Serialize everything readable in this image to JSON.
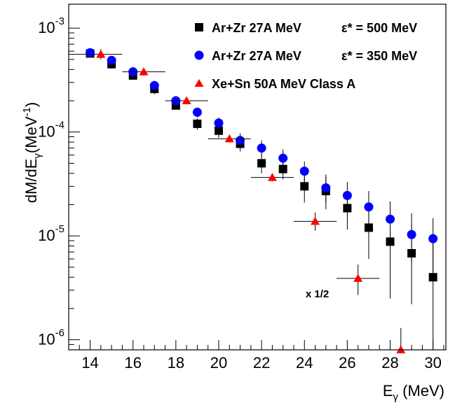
{
  "chart_data": {
    "type": "scatter",
    "xlabel": "E",
    "xlabel_sub": "γ",
    "xlabel_unit": " (MeV)",
    "ylabel": "dM/dE",
    "ylabel_sub": "γ",
    "ylabel_unit": "(MeV",
    "ylabel_unit_exp": "-1",
    "ylabel_close": ")",
    "xlim": [
      13.0,
      30.6
    ],
    "ylim": [
      8e-07,
      0.0017
    ],
    "yscale": "log",
    "x_ticks": [
      {
        "value": 14,
        "label": "14"
      },
      {
        "value": 16,
        "label": "16"
      },
      {
        "value": 18,
        "label": "18"
      },
      {
        "value": 20,
        "label": "20"
      },
      {
        "value": 22,
        "label": "22"
      },
      {
        "value": 24,
        "label": "24"
      },
      {
        "value": 26,
        "label": "26"
      },
      {
        "value": 28,
        "label": "28"
      },
      {
        "value": 30,
        "label": "30"
      }
    ],
    "y_ticks": [
      {
        "value": 1e-06,
        "base": "10",
        "exp": "-6"
      },
      {
        "value": 1e-05,
        "base": "10",
        "exp": "-5"
      },
      {
        "value": 0.0001,
        "base": "10",
        "exp": "-4"
      },
      {
        "value": 0.001,
        "base": "10",
        "exp": "-3"
      }
    ],
    "annotation": {
      "text": "x 1/2",
      "x": 24.6,
      "y": 2.8e-06
    },
    "series": [
      {
        "name": "Ar+Zr 27A MeV",
        "extra_label": "ε* = 500 MeV",
        "marker": "square",
        "color": "#000000",
        "points": [
          {
            "x": 14,
            "y": 0.00057,
            "ylo": 0.00052,
            "yhi": 0.00062
          },
          {
            "x": 15,
            "y": 0.00045,
            "ylo": 0.00041,
            "yhi": 0.0005
          },
          {
            "x": 16,
            "y": 0.00035,
            "ylo": 0.00032,
            "yhi": 0.00039
          },
          {
            "x": 17,
            "y": 0.00026,
            "ylo": 0.00023,
            "yhi": 0.00029
          },
          {
            "x": 18,
            "y": 0.00018,
            "ylo": 0.000165,
            "yhi": 0.0002
          },
          {
            "x": 19,
            "y": 0.00012,
            "ylo": 0.000105,
            "yhi": 0.000135
          },
          {
            "x": 20,
            "y": 0.000103,
            "ylo": 8.8e-05,
            "yhi": 0.000118
          },
          {
            "x": 21,
            "y": 7.7e-05,
            "ylo": 6.5e-05,
            "yhi": 9e-05
          },
          {
            "x": 22,
            "y": 5e-05,
            "ylo": 4e-05,
            "yhi": 6.2e-05
          },
          {
            "x": 23,
            "y": 4.4e-05,
            "ylo": 3.5e-05,
            "yhi": 5.5e-05
          },
          {
            "x": 24,
            "y": 3e-05,
            "ylo": 2.1e-05,
            "yhi": 4e-05
          },
          {
            "x": 25,
            "y": 2.7e-05,
            "ylo": 1.8e-05,
            "yhi": 3.7e-05
          },
          {
            "x": 26,
            "y": 1.85e-05,
            "ylo": 1.15e-05,
            "yhi": 2.7e-05
          },
          {
            "x": 27,
            "y": 1.2e-05,
            "ylo": 6e-06,
            "yhi": 2e-05
          },
          {
            "x": 28,
            "y": 8.8e-06,
            "ylo": 2.5e-06,
            "yhi": 1.6e-05
          },
          {
            "x": 29,
            "y": 6.8e-06,
            "ylo": 2.2e-06,
            "yhi": 1.3e-05
          },
          {
            "x": 30,
            "y": 4e-06,
            "ylo": 8e-07,
            "yhi": 9e-06
          }
        ]
      },
      {
        "name": "Ar+Zr 27A MeV",
        "extra_label": "ε* = 350 MeV",
        "marker": "circle",
        "color": "#0000ff",
        "points": [
          {
            "x": 14,
            "y": 0.00058,
            "ylo": 0.00053,
            "yhi": 0.00064
          },
          {
            "x": 15,
            "y": 0.00049,
            "ylo": 0.00045,
            "yhi": 0.00054
          },
          {
            "x": 16,
            "y": 0.00038,
            "ylo": 0.00035,
            "yhi": 0.00042
          },
          {
            "x": 17,
            "y": 0.00028,
            "ylo": 0.00025,
            "yhi": 0.00031
          },
          {
            "x": 18,
            "y": 0.0002,
            "ylo": 0.000185,
            "yhi": 0.000222
          },
          {
            "x": 19,
            "y": 0.000155,
            "ylo": 0.000138,
            "yhi": 0.000172
          },
          {
            "x": 20,
            "y": 0.000122,
            "ylo": 0.000106,
            "yhi": 0.000138
          },
          {
            "x": 21,
            "y": 8.3e-05,
            "ylo": 7e-05,
            "yhi": 9.7e-05
          },
          {
            "x": 22,
            "y": 7e-05,
            "ylo": 5.8e-05,
            "yhi": 8.3e-05
          },
          {
            "x": 23,
            "y": 5.6e-05,
            "ylo": 4.6e-05,
            "yhi": 6.8e-05
          },
          {
            "x": 24,
            "y": 4.2e-05,
            "ylo": 3.2e-05,
            "yhi": 5.2e-05
          },
          {
            "x": 25,
            "y": 2.9e-05,
            "ylo": 2.1e-05,
            "yhi": 3.9e-05
          },
          {
            "x": 26,
            "y": 2.45e-05,
            "ylo": 1.65e-05,
            "yhi": 3.3e-05
          },
          {
            "x": 27,
            "y": 1.9e-05,
            "ylo": 1.2e-05,
            "yhi": 2.7e-05
          },
          {
            "x": 28,
            "y": 1.45e-05,
            "ylo": 8.5e-06,
            "yhi": 2.15e-05
          },
          {
            "x": 29,
            "y": 1.03e-05,
            "ylo": 5.5e-06,
            "yhi": 1.65e-05
          },
          {
            "x": 30,
            "y": 9.4e-06,
            "ylo": 4.5e-06,
            "yhi": 1.48e-05
          }
        ]
      },
      {
        "name": "Xe+Sn 50A MeV Class A",
        "marker": "triangle",
        "color": "#ff0000",
        "points": [
          {
            "x": 14.5,
            "y": 0.00056,
            "ylo": 0.0005,
            "yhi": 0.00063,
            "xlo": 13.0,
            "xhi": 15.5
          },
          {
            "x": 16.5,
            "y": 0.00038,
            "ylo": 0.00035,
            "yhi": 0.00041,
            "xlo": 15.5,
            "xhi": 17.5
          },
          {
            "x": 18.5,
            "y": 0.0002,
            "ylo": 0.000185,
            "yhi": 0.000215,
            "xlo": 17.5,
            "xhi": 19.5
          },
          {
            "x": 20.5,
            "y": 8.6e-05,
            "ylo": 8e-05,
            "yhi": 9.2e-05,
            "xlo": 19.5,
            "xhi": 21.5
          },
          {
            "x": 22.5,
            "y": 3.65e-05,
            "ylo": 3.35e-05,
            "yhi": 4e-05,
            "xlo": 21.5,
            "xhi": 23.5
          },
          {
            "x": 24.5,
            "y": 1.38e-05,
            "ylo": 1.12e-05,
            "yhi": 1.68e-05,
            "xlo": 23.5,
            "xhi": 25.5
          },
          {
            "x": 26.5,
            "y": 3.9e-06,
            "ylo": 2.7e-06,
            "yhi": 5.3e-06,
            "xlo": 25.5,
            "xhi": 27.5
          },
          {
            "x": 28.5,
            "y": 8e-07,
            "ylo": 8e-07,
            "yhi": 1.3e-06,
            "xlo": 27.5,
            "xhi": 29.5
          }
        ]
      }
    ]
  }
}
